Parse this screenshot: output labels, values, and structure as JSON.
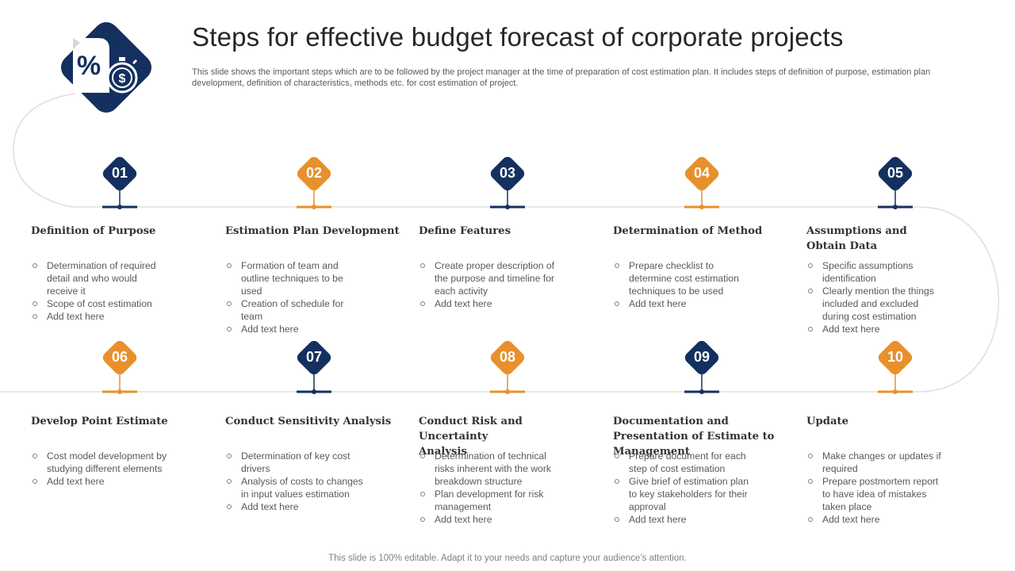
{
  "header": {
    "title": "Steps for effective budget forecast of corporate projects",
    "subtitle": "This slide shows the important steps which are to be followed by the project manager at the time of preparation of cost estimation plan. It includes steps of definition of purpose, estimation plan development, definition of characteristics, methods etc. for cost estimation of project."
  },
  "logo": {
    "icon": "percent-document-stopwatch-icon",
    "dollar_symbol": "$"
  },
  "colors": {
    "navy": "#13305f",
    "orange": "#e8902c",
    "line": "#d9d9d9"
  },
  "steps": [
    {
      "number": "01",
      "title": "Definition of Purpose",
      "color": "navy",
      "bullets": [
        "Determination of required detail and who would receive it",
        "Scope of cost estimation",
        "Add text here"
      ]
    },
    {
      "number": "02",
      "title": "Estimation Plan Development",
      "color": "orange",
      "bullets": [
        "Formation of team and outline techniques to be used",
        "Creation of schedule for team",
        "Add text here"
      ]
    },
    {
      "number": "03",
      "title": "Define Features",
      "color": "navy",
      "bullets": [
        "Create proper description of the purpose and timeline for each activity",
        "Add text here"
      ]
    },
    {
      "number": "04",
      "title": "Determination of Method",
      "color": "orange",
      "bullets": [
        "Prepare checklist to determine cost estimation techniques to be used",
        "Add text here"
      ]
    },
    {
      "number": "05",
      "title": "Assumptions and Obtain Data",
      "color": "navy",
      "bullets": [
        "Specific assumptions identification",
        "Clearly mention the things included and excluded during cost estimation",
        "Add text here"
      ]
    },
    {
      "number": "06",
      "title": "Develop Point Estimate",
      "color": "orange",
      "bullets": [
        "Cost model development by studying different elements",
        "Add text here"
      ]
    },
    {
      "number": "07",
      "title": "Conduct Sensitivity Analysis",
      "color": "navy",
      "bullets": [
        "Determination of key cost drivers",
        "Analysis of costs to changes in input values estimation",
        "Add text here"
      ]
    },
    {
      "number": "08",
      "title": "Conduct Risk and Uncertainty Analysis",
      "color": "orange",
      "bullets": [
        "Determination of technical risks inherent with the work breakdown structure",
        "Plan development for risk management",
        "Add text here"
      ]
    },
    {
      "number": "09",
      "title": "Documentation and Presentation of Estimate to Management",
      "color": "navy",
      "bullets": [
        "Prepare document for each step of cost estimation",
        "Give brief of estimation plan to key stakeholders for their approval",
        "Add text here"
      ]
    },
    {
      "number": "10",
      "title": "Update",
      "color": "orange",
      "bullets": [
        "Make changes or updates if required",
        "Prepare postmortem report to have idea of mistakes taken place",
        "Add text here"
      ]
    }
  ],
  "footer": {
    "text": "This slide is 100% editable. Adapt it to your needs and capture your audience’s attention."
  }
}
